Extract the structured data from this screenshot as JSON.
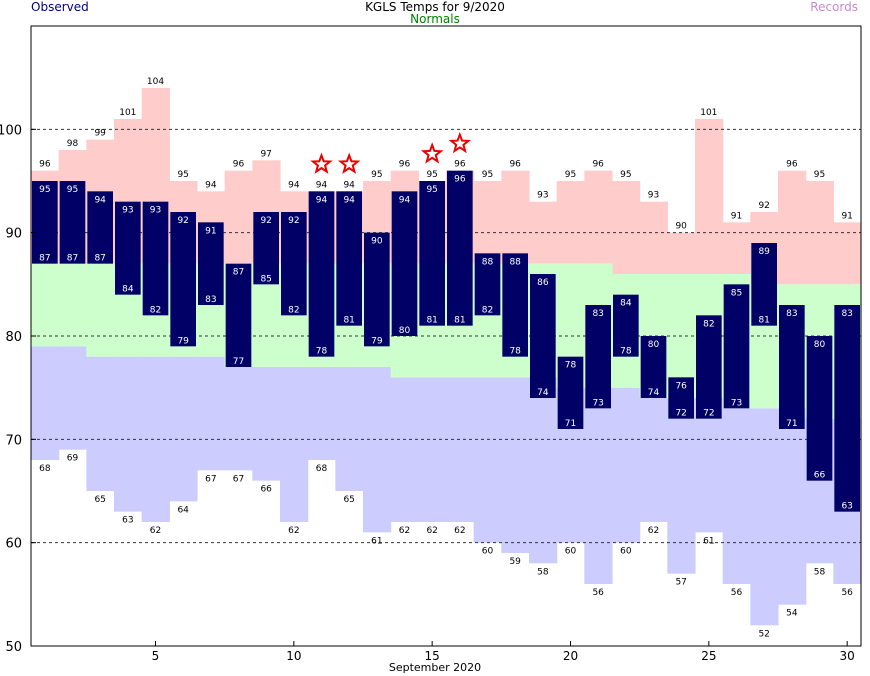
{
  "header": {
    "title": "KGLS Temps for 9/2020",
    "left_legend": "Observed",
    "center_legend": "Normals",
    "right_legend": "Records"
  },
  "colors": {
    "observed": "#000066",
    "normals": "#ccffcc",
    "record_high": "#ffcccc",
    "record_low": "#ccccff",
    "record_star": "#ee0000",
    "observed_label": "#000080",
    "normals_label": "#008000",
    "records_label": "#cc88cc"
  },
  "chart_data": {
    "type": "bar",
    "title": "KGLS Temps for 9/2020",
    "xlabel": "September 2020",
    "ylabel": "",
    "xlim": [
      0.5,
      30.5
    ],
    "ylim": [
      50,
      110
    ],
    "x_ticks": [
      5,
      10,
      15,
      20,
      25,
      30
    ],
    "y_ticks": [
      50,
      60,
      70,
      80,
      90,
      100
    ],
    "y_gridlines": [
      60,
      70,
      80,
      90,
      100
    ],
    "grid": "dashed horizontal",
    "days": [
      1,
      2,
      3,
      4,
      5,
      6,
      7,
      8,
      9,
      10,
      11,
      12,
      13,
      14,
      15,
      16,
      17,
      18,
      19,
      20,
      21,
      22,
      23,
      24,
      25,
      26,
      27,
      28,
      29,
      30
    ],
    "series": [
      {
        "name": "Observed",
        "kind": "high",
        "values": [
          95,
          95,
          94,
          93,
          93,
          92,
          91,
          87,
          92,
          92,
          94,
          94,
          90,
          94,
          95,
          96,
          88,
          88,
          86,
          78,
          83,
          84,
          80,
          76,
          82,
          85,
          89,
          83,
          80,
          83
        ]
      },
      {
        "name": "Observed",
        "kind": "low",
        "values": [
          87,
          87,
          87,
          84,
          82,
          79,
          83,
          77,
          85,
          82,
          78,
          81,
          79,
          80,
          81,
          81,
          82,
          78,
          74,
          71,
          73,
          78,
          74,
          72,
          72,
          73,
          81,
          71,
          66,
          63
        ]
      },
      {
        "name": "Normals",
        "kind": "high",
        "values": [
          87,
          87,
          87,
          87,
          87,
          87,
          87,
          87,
          87,
          87,
          87,
          87,
          87,
          87,
          87,
          87,
          87,
          87,
          87,
          87,
          87,
          86,
          86,
          86,
          86,
          86,
          85,
          85,
          85,
          85
        ]
      },
      {
        "name": "Normals",
        "kind": "low",
        "values": [
          79,
          79,
          78,
          78,
          78,
          78,
          78,
          77,
          77,
          77,
          77,
          77,
          77,
          76,
          76,
          76,
          76,
          76,
          76,
          75,
          75,
          75,
          74,
          74,
          74,
          73,
          73,
          73,
          72,
          72
        ]
      },
      {
        "name": "Records",
        "kind": "high",
        "values": [
          96,
          98,
          99,
          101,
          104,
          95,
          94,
          96,
          97,
          94,
          94,
          94,
          95,
          96,
          95,
          96,
          95,
          96,
          93,
          95,
          96,
          95,
          93,
          90,
          101,
          91,
          92,
          96,
          95,
          91
        ]
      },
      {
        "name": "Records",
        "kind": "low",
        "values": [
          68,
          69,
          65,
          63,
          62,
          64,
          67,
          67,
          66,
          62,
          68,
          65,
          61,
          62,
          62,
          62,
          60,
          59,
          58,
          60,
          56,
          60,
          62,
          57,
          61,
          56,
          52,
          54,
          58,
          56
        ]
      }
    ],
    "record_high_stars": [
      11,
      12,
      15,
      16
    ]
  }
}
